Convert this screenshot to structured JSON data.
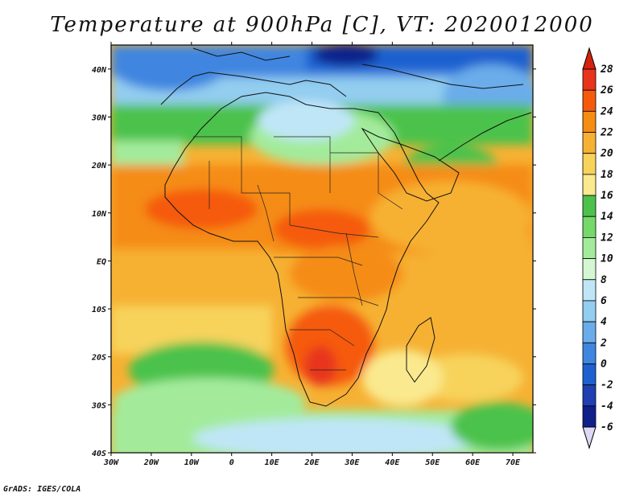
{
  "title": "Temperature at 900hPa [C], VT: 2020012000",
  "credit": "GrADS: IGES/COLA",
  "map": {
    "lon_range": [
      -30,
      75
    ],
    "lat_range": [
      -40,
      45
    ],
    "lon_ticks": [
      "30W",
      "20W",
      "10W",
      "0",
      "10E",
      "20E",
      "30E",
      "40E",
      "50E",
      "60E",
      "70E"
    ],
    "lat_ticks": [
      "40N",
      "30N",
      "20N",
      "10N",
      "EQ",
      "10S",
      "20S",
      "30S",
      "40S"
    ]
  },
  "colorbar": {
    "labels": [
      "28",
      "26",
      "24",
      "22",
      "20",
      "18",
      "16",
      "14",
      "12",
      "10",
      "8",
      "6",
      "4",
      "2",
      "0",
      "-2",
      "-4",
      "-6"
    ],
    "colors": [
      "#e8341c",
      "#f55a0c",
      "#f58c14",
      "#f6b133",
      "#f7d35c",
      "#fae98e",
      "#4cc24c",
      "#74d96a",
      "#a3eb9b",
      "#d4f7d2",
      "#bfe6f7",
      "#93cdf0",
      "#6aadea",
      "#3f86e0",
      "#1f60d0",
      "#1f3fb3",
      "#10208a",
      "#dcd8f5"
    ],
    "top_color": "#d4220c",
    "bottom_color": "#dcd8f5"
  }
}
